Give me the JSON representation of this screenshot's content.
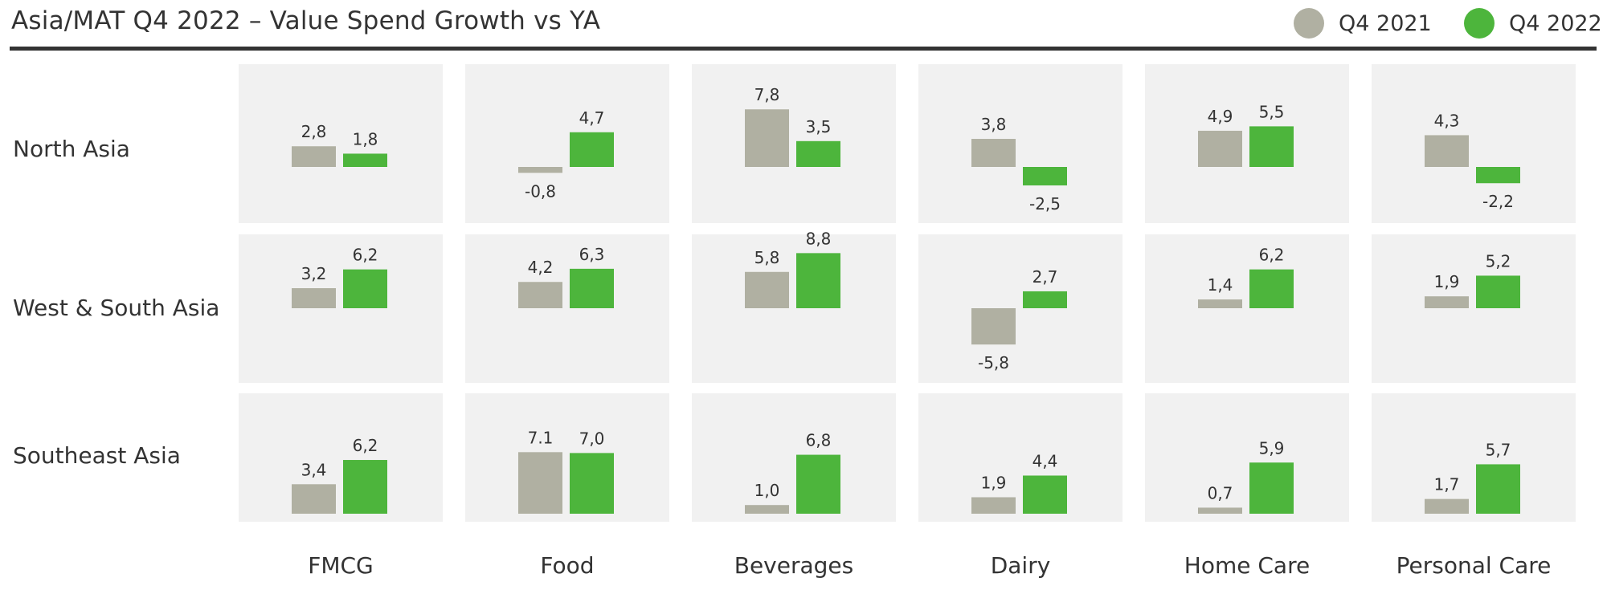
{
  "title": "Asia/MAT Q4 2022 – Value Spend Growth vs YA",
  "chart_data": {
    "type": "bar",
    "title": "Asia/MAT Q4 2022 – Value Spend Growth vs YA",
    "legend_position": "top-right",
    "grid": false,
    "series": [
      {
        "name": "Q4 2021",
        "color": "#b0b0a2"
      },
      {
        "name": "Q4 2022",
        "color": "#4db53c"
      }
    ],
    "columns": [
      "FMCG",
      "Food",
      "Beverages",
      "Dairy",
      "Home Care",
      "Personal Care"
    ],
    "rows": [
      "North Asia",
      "West & South Asia",
      "Southeast Asia"
    ],
    "values": [
      [
        [
          2.8,
          1.8
        ],
        [
          -0.8,
          4.7
        ],
        [
          7.8,
          3.5
        ],
        [
          3.8,
          -2.5
        ],
        [
          4.9,
          5.5
        ],
        [
          4.3,
          -2.2
        ]
      ],
      [
        [
          3.2,
          6.2
        ],
        [
          4.2,
          6.3
        ],
        [
          5.8,
          8.8
        ],
        [
          -5.8,
          2.7
        ],
        [
          1.4,
          6.2
        ],
        [
          1.9,
          5.2
        ]
      ],
      [
        [
          3.4,
          6.2
        ],
        [
          7.1,
          7.0
        ],
        [
          1.0,
          6.8
        ],
        [
          1.9,
          4.4
        ],
        [
          0.7,
          5.9
        ],
        [
          1.7,
          5.7
        ]
      ]
    ],
    "labels": [
      [
        [
          "2,8",
          "1,8"
        ],
        [
          "-0,8",
          "4,7"
        ],
        [
          "7,8",
          "3,5"
        ],
        [
          "3,8",
          "-2,5"
        ],
        [
          "4,9",
          "5,5"
        ],
        [
          "4,3",
          "-2,2"
        ]
      ],
      [
        [
          "3,2",
          "6,2"
        ],
        [
          "4,2",
          "6,3"
        ],
        [
          "5,8",
          "8,8"
        ],
        [
          "-5,8",
          "2,7"
        ],
        [
          "1,4",
          "6,2"
        ],
        [
          "1,9",
          "5,2"
        ]
      ],
      [
        [
          "3,4",
          "6,2"
        ],
        [
          "7.1",
          "7,0"
        ],
        [
          "1,0",
          "6,8"
        ],
        [
          "1,9",
          "4,4"
        ],
        [
          "0,7",
          "5,9"
        ],
        [
          "1,7",
          "5,7"
        ]
      ]
    ]
  },
  "colors": {
    "panel_bg": "#f1f1f1",
    "q4_2021": "#b0b0a2",
    "q4_2022": "#4db53c",
    "text": "#333333",
    "rule": "#333333"
  }
}
